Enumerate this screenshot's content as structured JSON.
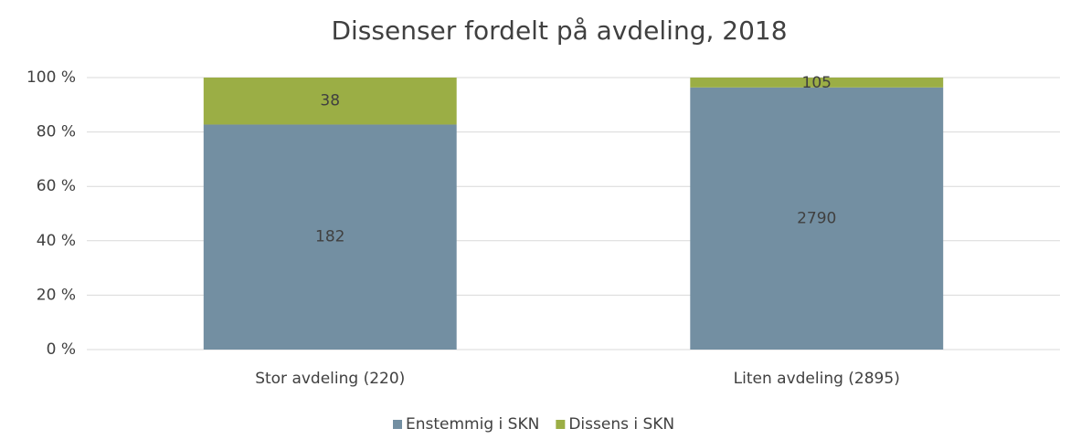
{
  "chart_data": {
    "type": "bar",
    "stacking": "percent",
    "title": "Dissenser fordelt på avdeling, 2018",
    "categories": [
      "Stor avdeling (220)",
      "Liten avdeling (2895)"
    ],
    "series": [
      {
        "name": "Enstemmig i SKN",
        "color": "#738fa2",
        "values": [
          182,
          2790
        ]
      },
      {
        "name": "Dissens i SKN",
        "color": "#9bae45",
        "values": [
          38,
          105
        ]
      }
    ],
    "ylim": [
      0,
      100
    ],
    "yticks": [
      {
        "value": 0,
        "label": "0 %"
      },
      {
        "value": 20,
        "label": "20 %"
      },
      {
        "value": 40,
        "label": "40 %"
      },
      {
        "value": 60,
        "label": "60 %"
      },
      {
        "value": 80,
        "label": "80 %"
      },
      {
        "value": 100,
        "label": "100 %"
      }
    ],
    "grid": true,
    "legend": "bottom"
  }
}
